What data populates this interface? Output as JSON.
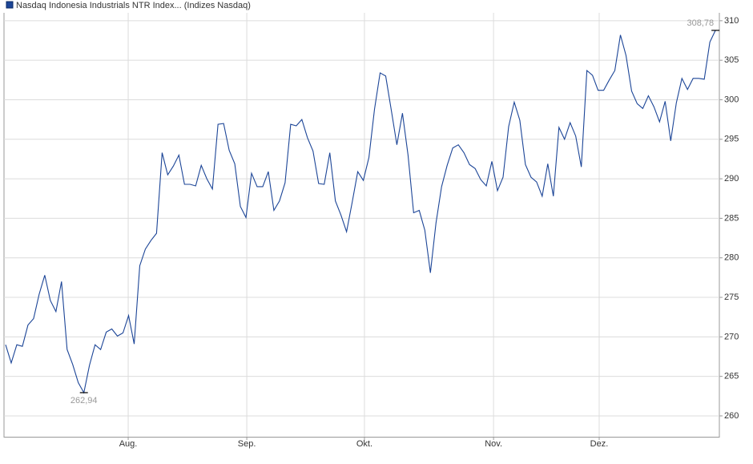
{
  "chart_data": {
    "type": "line",
    "series": [
      {
        "name": "Nasdaq Indonesia Industrials NTR Index... (Indizes Nasdaq)",
        "color": "#1c4597",
        "values": [
          269,
          266.7,
          269,
          268.8,
          271.5,
          272.3,
          275.4,
          277.8,
          274.6,
          273.2,
          277,
          268.4,
          266.5,
          264.2,
          262.94,
          266.4,
          269,
          268.4,
          270.6,
          271,
          270.1,
          270.5,
          272.7,
          269.1,
          279,
          281.1,
          282.2,
          283.1,
          293.3,
          290.5,
          291.6,
          293,
          289.3,
          289.3,
          289.1,
          291.7,
          290,
          288.7,
          296.9,
          297,
          293.6,
          291.9,
          286.5,
          285.1,
          290.7,
          289,
          289,
          290.9,
          286,
          287.2,
          289.5,
          296.9,
          296.7,
          297.5,
          295.2,
          293.5,
          289.4,
          289.3,
          293.3,
          287.2,
          285.4,
          283.3,
          287,
          290.9,
          289.8,
          292.7,
          298.8,
          303.4,
          303,
          298.7,
          294.3,
          298.3,
          293,
          285.7,
          286,
          283.5,
          278.1,
          284.4,
          289,
          291.7,
          293.9,
          294.3,
          293.3,
          291.8,
          291.3,
          289.9,
          289.1,
          292.2,
          288.5,
          290.2,
          296.6,
          299.7,
          297.4,
          291.8,
          290.2,
          289.6,
          287.8,
          291.9,
          287.8,
          296.5,
          295,
          297.1,
          295.4,
          291.5,
          303.7,
          303.1,
          301.2,
          301.2,
          302.5,
          303.7,
          308.2,
          305.6,
          301.1,
          299.5,
          298.9,
          300.5,
          299.1,
          297.2,
          299.8,
          294.8,
          299.6,
          302.7,
          301.3,
          302.7,
          302.7,
          302.6,
          307.3,
          308.78
        ],
        "value_labels": [
          null,
          null,
          null,
          null,
          null,
          null,
          null,
          null,
          null,
          null,
          null,
          null,
          null,
          null,
          "262,94",
          null,
          null,
          null,
          null,
          null,
          null,
          null,
          null,
          null,
          null,
          null,
          null,
          null,
          null,
          null,
          null,
          null,
          null,
          null,
          null,
          null,
          null,
          null,
          null,
          null,
          null,
          null,
          null,
          null,
          null,
          null,
          null,
          null,
          null,
          null,
          null,
          null,
          null,
          null,
          null,
          null,
          null,
          null,
          null,
          null,
          null,
          null,
          null,
          null,
          null,
          null,
          null,
          null,
          null,
          null,
          null,
          null,
          null,
          null,
          null,
          null,
          null,
          null,
          null,
          null,
          null,
          null,
          null,
          null,
          null,
          null,
          null,
          null,
          null,
          null,
          null,
          null,
          null,
          null,
          null,
          null,
          null,
          null,
          null,
          null,
          null,
          null,
          null,
          null,
          null,
          null,
          null,
          null,
          null,
          null,
          null,
          null,
          null,
          null,
          null,
          null,
          null,
          null,
          null,
          null,
          null,
          null,
          null,
          null,
          null,
          null,
          null,
          "308,78"
        ]
      }
    ],
    "xlim": [
      -0.29,
      127.7
    ],
    "xticks": [
      {
        "value": 21.93,
        "label": "Aug."
      },
      {
        "value": 43.15,
        "label": "Sep."
      },
      {
        "value": 64.2,
        "label": "Okt."
      },
      {
        "value": 87.3,
        "label": "Nov."
      },
      {
        "value": 106.2,
        "label": "Dez."
      }
    ],
    "ylim": [
      257.36,
      311
    ],
    "yticks": [
      260,
      265,
      270,
      275,
      280,
      285,
      290,
      295,
      300,
      305,
      310
    ],
    "grid": true
  }
}
